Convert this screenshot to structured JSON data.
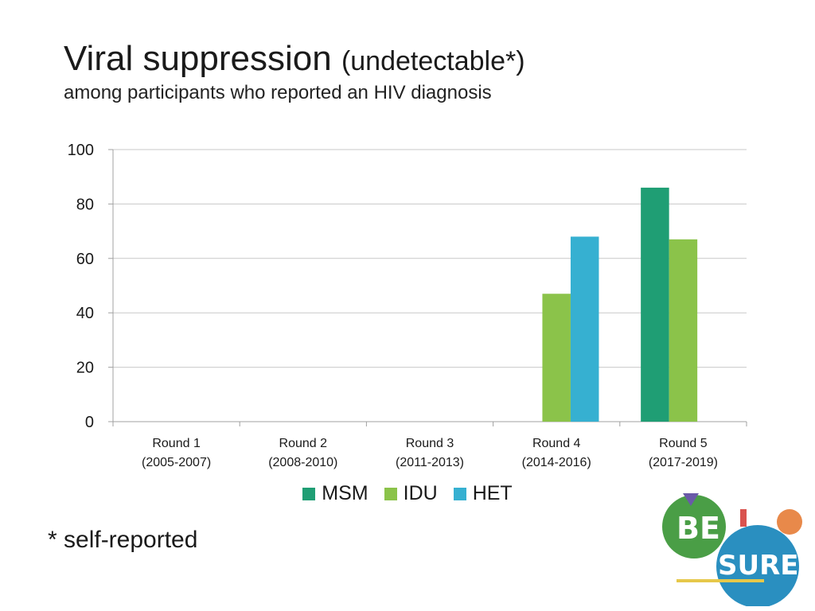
{
  "slide": {
    "title_main": "Viral suppression",
    "title_paren": "(undetectable*)",
    "subtitle": "among participants who reported an HIV diagnosis",
    "footnote": "* self-reported"
  },
  "logo": {
    "word_top": "BE",
    "word_bottom": "SURE"
  },
  "chart_data": {
    "type": "bar",
    "title": "",
    "xlabel": "",
    "ylabel": "",
    "ylim": [
      0,
      100
    ],
    "yticks": [
      0,
      20,
      40,
      60,
      80,
      100
    ],
    "grid": true,
    "legend_position": "bottom",
    "categories": [
      [
        "Round 1",
        "(2005-2007)"
      ],
      [
        "Round 2",
        "(2008-2010)"
      ],
      [
        "Round 3",
        "(2011-2013)"
      ],
      [
        "Round 4",
        "(2014-2016)"
      ],
      [
        "Round 5",
        "(2017-2019)"
      ]
    ],
    "series": [
      {
        "name": "MSM",
        "color": "#1f9e74",
        "values": [
          null,
          null,
          null,
          null,
          86
        ]
      },
      {
        "name": "IDU",
        "color": "#8bc34a",
        "values": [
          null,
          null,
          null,
          47,
          67
        ]
      },
      {
        "name": "HET",
        "color": "#36b0d1",
        "values": [
          null,
          null,
          null,
          68,
          null
        ]
      }
    ]
  }
}
